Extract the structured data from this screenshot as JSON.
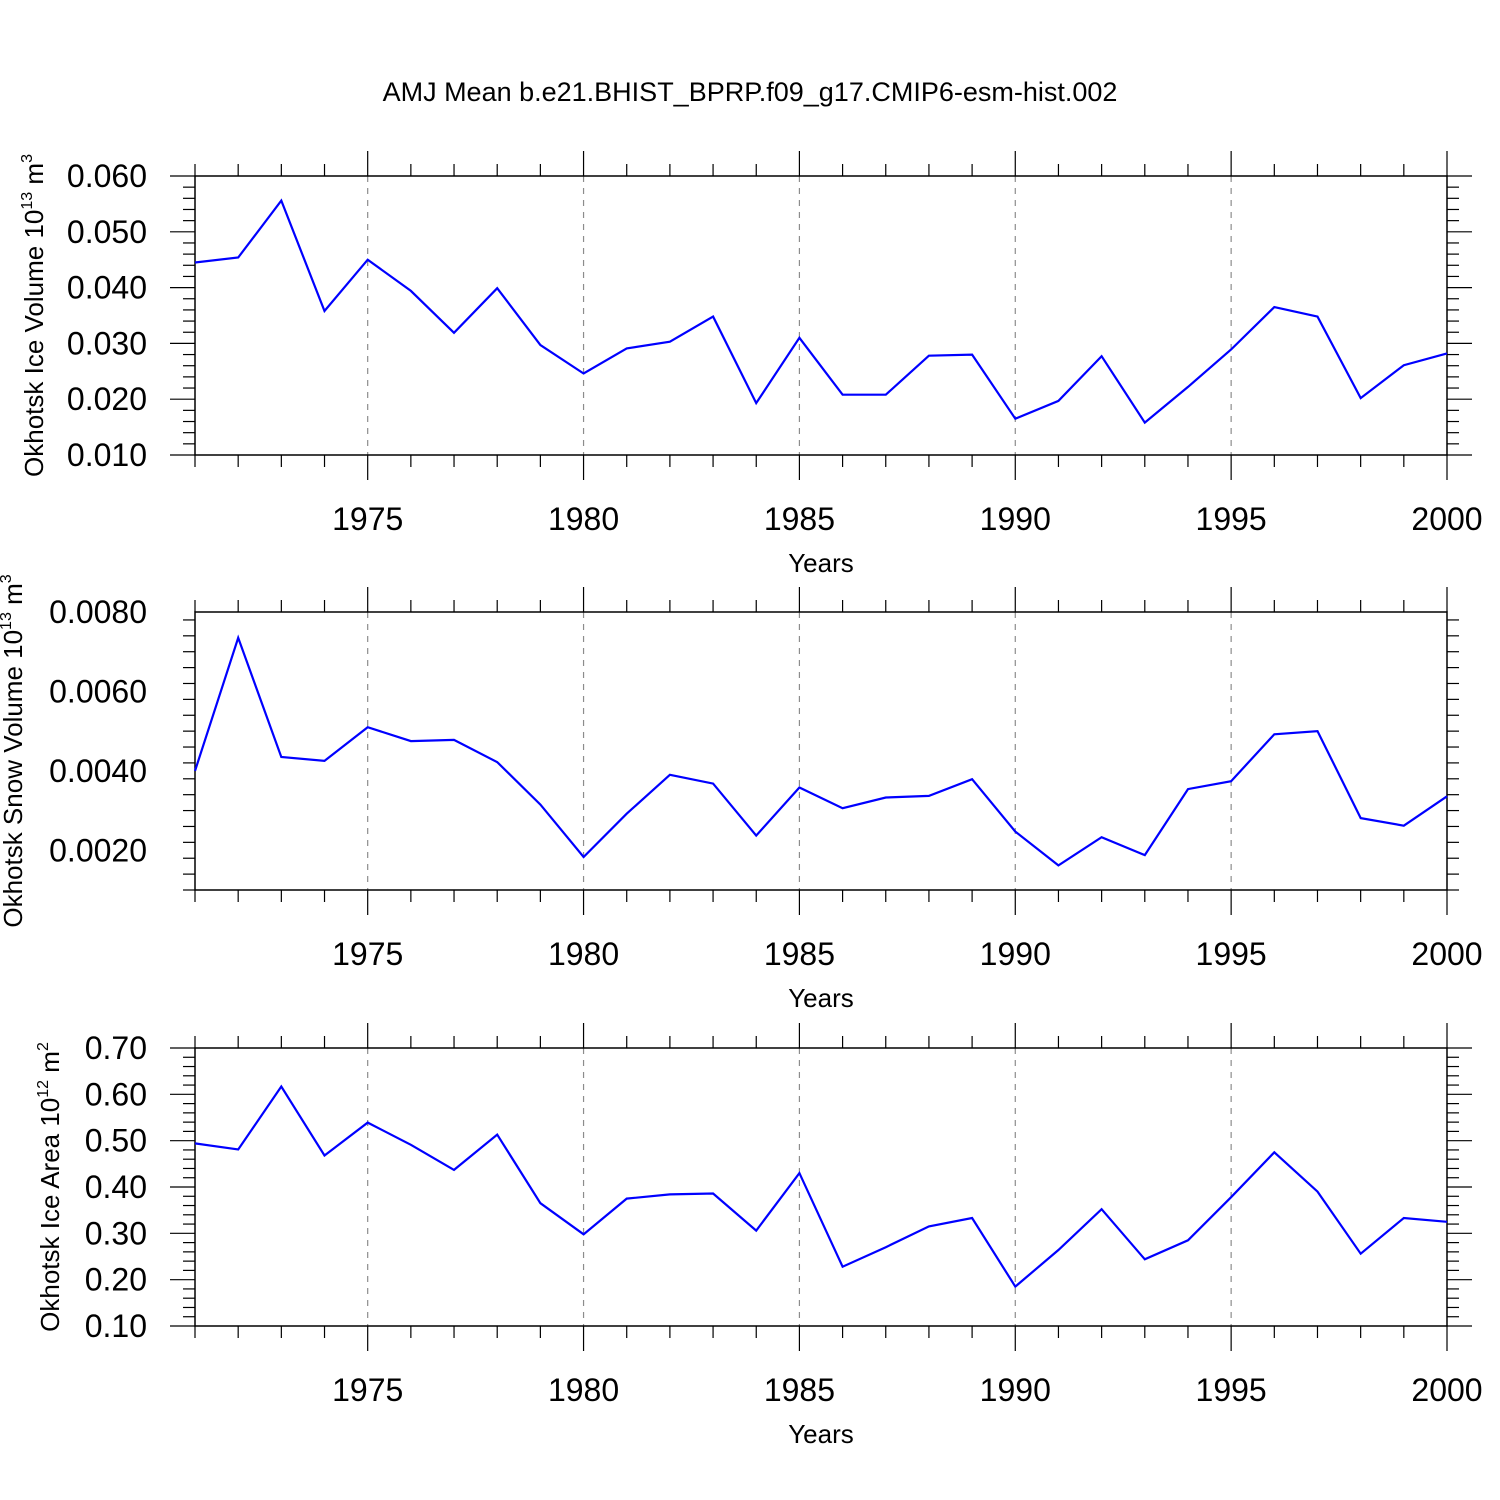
{
  "title": "AMJ Mean b.e21.BHIST_BPRP.f09_g17.CMIP6-esm-hist.002",
  "line_color": "#0000ff",
  "chart_data": [
    {
      "type": "line",
      "ylabel_main": "Okhotsk Ice Volume 10",
      "ylabel_exp": "13",
      "ylabel_unit": " m",
      "ylabel_unit_exp": "3",
      "xlabel": "Years",
      "xlim": [
        1971,
        2000
      ],
      "ylim": [
        0.01,
        0.06
      ],
      "yticks": [
        "0.010",
        "0.020",
        "0.030",
        "0.040",
        "0.050",
        "0.060"
      ],
      "xticks": [
        "1975",
        "1980",
        "1985",
        "1990",
        "1995",
        "2000"
      ],
      "x": [
        1971,
        1972,
        1973,
        1974,
        1975,
        1976,
        1977,
        1978,
        1979,
        1980,
        1981,
        1982,
        1983,
        1984,
        1985,
        1986,
        1987,
        1988,
        1989,
        1990,
        1991,
        1992,
        1993,
        1994,
        1995,
        1996,
        1997,
        1998,
        1999,
        2000
      ],
      "values": [
        0.0445,
        0.0454,
        0.0556,
        0.0358,
        0.045,
        0.0394,
        0.0319,
        0.0399,
        0.0297,
        0.0246,
        0.0291,
        0.0303,
        0.0348,
        0.0193,
        0.031,
        0.0208,
        0.0208,
        0.0278,
        0.028,
        0.0165,
        0.0197,
        0.0277,
        0.0158,
        0.0222,
        0.0289,
        0.0365,
        0.0348,
        0.0202,
        0.0261,
        0.0282
      ]
    },
    {
      "type": "line",
      "ylabel_main": "Okhotsk Snow Volume 10",
      "ylabel_exp": "13",
      "ylabel_unit": " m",
      "ylabel_unit_exp": "3",
      "xlabel": "Years",
      "xlim": [
        1971,
        2000
      ],
      "ylim": [
        0.001,
        0.008
      ],
      "yticks": [
        "0.0020",
        "0.0040",
        "0.0060",
        "0.0080"
      ],
      "xticks": [
        "1975",
        "1980",
        "1985",
        "1990",
        "1995",
        "2000"
      ],
      "x": [
        1971,
        1972,
        1973,
        1974,
        1975,
        1976,
        1977,
        1978,
        1979,
        1980,
        1981,
        1982,
        1983,
        1984,
        1985,
        1986,
        1987,
        1988,
        1989,
        1990,
        1991,
        1992,
        1993,
        1994,
        1995,
        1996,
        1997,
        1998,
        1999,
        2000
      ],
      "values": [
        0.004,
        0.00735,
        0.00435,
        0.00425,
        0.0051,
        0.00475,
        0.00478,
        0.00422,
        0.00315,
        0.00183,
        0.00292,
        0.0039,
        0.00368,
        0.00237,
        0.00358,
        0.00306,
        0.00333,
        0.00337,
        0.00379,
        0.00247,
        0.00162,
        0.00233,
        0.00188,
        0.00354,
        0.00374,
        0.00492,
        0.005,
        0.00281,
        0.00262,
        0.00336
      ]
    },
    {
      "type": "line",
      "ylabel_main": "Okhotsk Ice Area 10",
      "ylabel_exp": "12",
      "ylabel_unit": " m",
      "ylabel_unit_exp": "2",
      "xlabel": "Years",
      "xlim": [
        1971,
        2000
      ],
      "ylim": [
        0.1,
        0.7
      ],
      "yticks": [
        "0.10",
        "0.20",
        "0.30",
        "0.40",
        "0.50",
        "0.60",
        "0.70"
      ],
      "xticks": [
        "1975",
        "1980",
        "1985",
        "1990",
        "1995",
        "2000"
      ],
      "x": [
        1971,
        1972,
        1973,
        1974,
        1975,
        1976,
        1977,
        1978,
        1979,
        1980,
        1981,
        1982,
        1983,
        1984,
        1985,
        1986,
        1987,
        1988,
        1989,
        1990,
        1991,
        1992,
        1993,
        1994,
        1995,
        1996,
        1997,
        1998,
        1999,
        2000
      ],
      "values": [
        0.494,
        0.481,
        0.617,
        0.468,
        0.539,
        0.491,
        0.437,
        0.513,
        0.365,
        0.298,
        0.375,
        0.384,
        0.386,
        0.306,
        0.43,
        0.228,
        0.27,
        0.315,
        0.333,
        0.185,
        0.264,
        0.352,
        0.244,
        0.285,
        0.378,
        0.475,
        0.39,
        0.256,
        0.333,
        0.325
      ]
    }
  ]
}
